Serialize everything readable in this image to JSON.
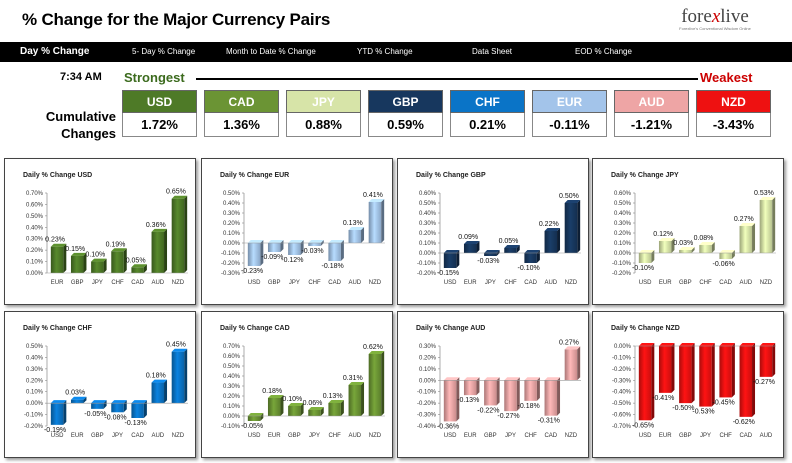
{
  "header": {
    "title": "% Change for the Major Currency Pairs"
  },
  "logo": {
    "left": "fore",
    "x": "x",
    "right": "live",
    "tagline": "Forexlive's Conventional Wisdom Online"
  },
  "tabs": [
    "Day % Change",
    "5- Day % Change",
    "Month to Date % Change",
    "YTD % Change",
    "Data Sheet",
    "EOD % Change"
  ],
  "summary": {
    "time": "7:34 AM",
    "strongest": "Strongest",
    "weakest": "Weakest",
    "cumulative_line1": "Cumulative",
    "cumulative_line2": "Changes",
    "currencies": [
      {
        "code": "USD",
        "value": "1.72%",
        "color": "#4e7a27"
      },
      {
        "code": "CAD",
        "value": "1.36%",
        "color": "#6b9434"
      },
      {
        "code": "JPY",
        "value": "0.88%",
        "color": "#d7e4a8"
      },
      {
        "code": "GBP",
        "value": "0.59%",
        "color": "#17375e"
      },
      {
        "code": "CHF",
        "value": "0.21%",
        "color": "#0a74c7"
      },
      {
        "code": "EUR",
        "value": "-0.11%",
        "color": "#a3c4ea"
      },
      {
        "code": "AUD",
        "value": "-1.21%",
        "color": "#eea5a5"
      },
      {
        "code": "NZD",
        "value": "-3.43%",
        "color": "#ee1111"
      }
    ]
  },
  "chart_data": [
    {
      "type": "bar",
      "title": "Daily % Change USD",
      "color": "#4e7a27",
      "categories": [
        "EUR",
        "GBP",
        "JPY",
        "CHF",
        "CAD",
        "AUD",
        "NZD"
      ],
      "values": [
        0.23,
        0.15,
        0.1,
        0.19,
        0.05,
        0.36,
        0.65
      ],
      "labels": [
        "0.23%",
        "0.15%",
        "0.10%",
        "0.19%",
        "0.05%",
        "0.36%",
        "0.65%"
      ],
      "ylim": [
        0,
        0.7
      ],
      "ytick_step": 0.1
    },
    {
      "type": "bar",
      "title": "Daily % Change EUR",
      "color": "#a3c4ea",
      "categories": [
        "USD",
        "GBP",
        "JPY",
        "CHF",
        "CAD",
        "AUD",
        "NZD"
      ],
      "values": [
        -0.23,
        -0.09,
        -0.12,
        -0.03,
        -0.18,
        0.13,
        0.41
      ],
      "labels": [
        "-0.23%",
        "-0.09%",
        "-0.12%",
        "-0.03%",
        "-0.18%",
        "0.13%",
        "0.41%"
      ],
      "ylim": [
        -0.3,
        0.5
      ],
      "ytick_step": 0.1
    },
    {
      "type": "bar",
      "title": "Daily % Change GBP",
      "color": "#17375e",
      "categories": [
        "USD",
        "EUR",
        "JPY",
        "CHF",
        "CAD",
        "AUD",
        "NZD"
      ],
      "values": [
        -0.15,
        0.09,
        -0.03,
        0.05,
        -0.1,
        0.22,
        0.5
      ],
      "labels": [
        "-0.15%",
        "0.09%",
        "-0.03%",
        "0.05%",
        "-0.10%",
        "0.22%",
        "0.50%"
      ],
      "ylim": [
        -0.2,
        0.6
      ],
      "ytick_step": 0.1
    },
    {
      "type": "bar",
      "title": "Daily % Change JPY",
      "color": "#d7e4a8",
      "categories": [
        "USD",
        "EUR",
        "GBP",
        "CHF",
        "CAD",
        "AUD",
        "NZD"
      ],
      "values": [
        -0.1,
        0.12,
        0.03,
        0.08,
        -0.06,
        0.27,
        0.53
      ],
      "labels": [
        "-0.10%",
        "0.12%",
        "0.03%",
        "0.08%",
        "-0.06%",
        "0.27%",
        "0.53%"
      ],
      "ylim": [
        -0.2,
        0.6
      ],
      "ytick_step": 0.1
    },
    {
      "type": "bar",
      "title": "Daily % Change CHF",
      "color": "#0a74c7",
      "categories": [
        "USD",
        "EUR",
        "GBP",
        "JPY",
        "CAD",
        "AUD",
        "NZD"
      ],
      "values": [
        -0.19,
        0.03,
        -0.05,
        -0.08,
        -0.13,
        0.18,
        0.45
      ],
      "labels": [
        "-0.19%",
        "0.03%",
        "-0.05%",
        "-0.08%",
        "-0.13%",
        "0.18%",
        "0.45%"
      ],
      "ylim": [
        -0.2,
        0.5
      ],
      "ytick_step": 0.1
    },
    {
      "type": "bar",
      "title": "Daily % Change CAD",
      "color": "#6b9434",
      "categories": [
        "USD",
        "EUR",
        "GBP",
        "JPY",
        "CHF",
        "AUD",
        "NZD"
      ],
      "values": [
        -0.05,
        0.18,
        0.1,
        0.06,
        0.13,
        0.31,
        0.62
      ],
      "labels": [
        "-0.05%",
        "0.18%",
        "0.10%",
        "0.06%",
        "0.13%",
        "0.31%",
        "0.62%"
      ],
      "ylim": [
        -0.1,
        0.7
      ],
      "ytick_step": 0.1
    },
    {
      "type": "bar",
      "title": "Daily % Change AUD",
      "color": "#eea5a5",
      "categories": [
        "USD",
        "EUR",
        "GBP",
        "JPY",
        "CHF",
        "CAD",
        "NZD"
      ],
      "values": [
        -0.36,
        -0.13,
        -0.22,
        -0.27,
        -0.18,
        -0.31,
        0.27
      ],
      "labels": [
        "-0.36%",
        "-0.13%",
        "-0.22%",
        "-0.27%",
        "-0.18%",
        "-0.31%",
        "0.27%"
      ],
      "ylim": [
        -0.4,
        0.3
      ],
      "ytick_step": 0.1
    },
    {
      "type": "bar",
      "title": "Daily % Change NZD",
      "color": "#ee1111",
      "categories": [
        "USD",
        "EUR",
        "GBP",
        "JPY",
        "CHF",
        "CAD",
        "AUD"
      ],
      "values": [
        -0.65,
        -0.41,
        -0.5,
        -0.53,
        -0.45,
        -0.62,
        -0.27
      ],
      "labels": [
        "-0.65%",
        "-0.41%",
        "-0.50%",
        "-0.53%",
        "-0.45%",
        "-0.62%",
        "-0.27%"
      ],
      "ylim": [
        -0.7,
        0.0
      ],
      "ytick_step": 0.1
    }
  ]
}
